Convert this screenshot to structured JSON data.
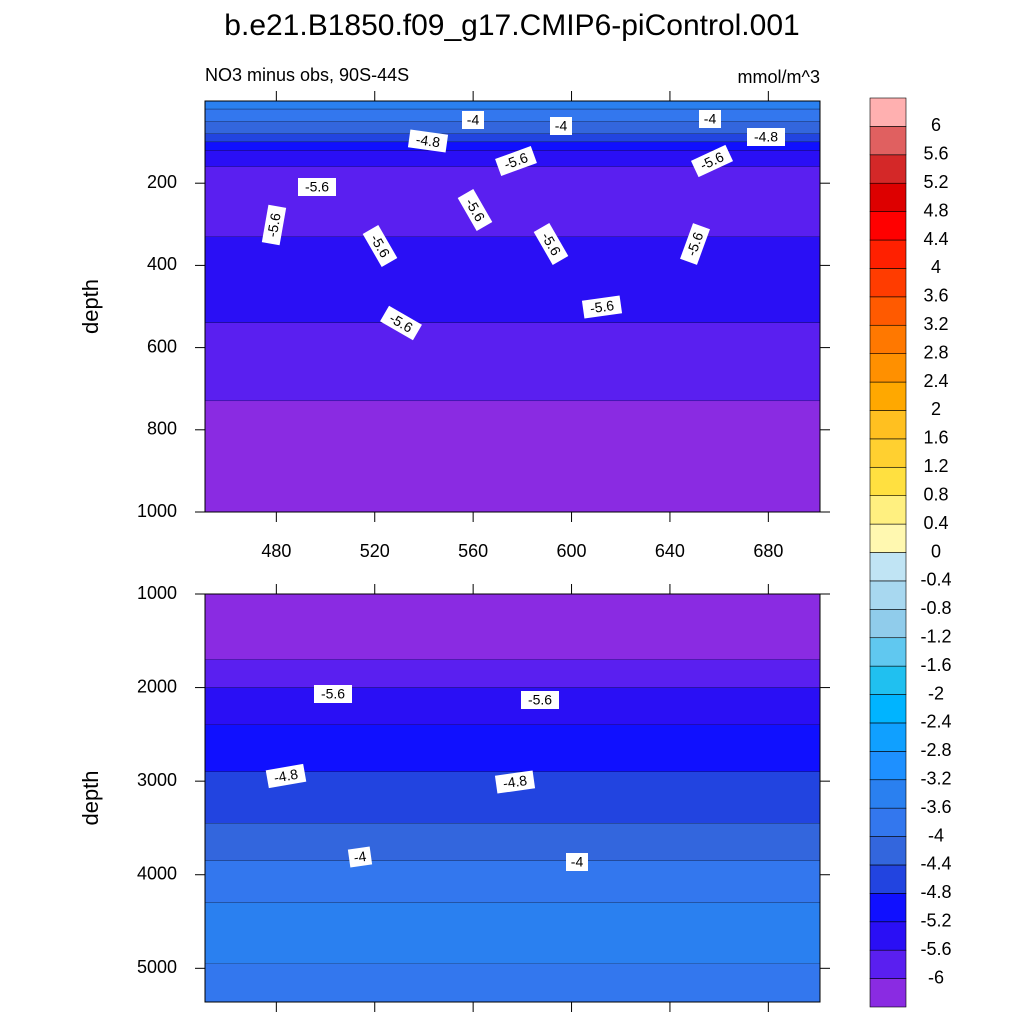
{
  "chart_data": {
    "type": "contour",
    "title": "b.e21.B1850.f09_g17.CMIP6-piControl.001",
    "units": "mmol/m^3",
    "colorbar": {
      "levels": [
        -6,
        -5.6,
        -5.2,
        -4.8,
        -4.4,
        -4,
        -3.6,
        -3.2,
        -2.8,
        -2.4,
        -2,
        -1.6,
        -1.2,
        -0.8,
        -0.4,
        0,
        0.4,
        0.8,
        1.2,
        1.6,
        2,
        2.4,
        2.8,
        3.2,
        3.6,
        4,
        4.4,
        4.8,
        5.2,
        5.6,
        6
      ],
      "colors": [
        "#8a2be2",
        "#5a1ff0",
        "#2a0ff5",
        "#1010ff",
        "#2244e0",
        "#3366dd",
        "#3377ee",
        "#2a80f0",
        "#1e90ff",
        "#10a0ff",
        "#00b4ff",
        "#20c0f0",
        "#60c8f0",
        "#90cceb",
        "#a8d8f0",
        "#c0e4f4",
        "#fff8b0",
        "#fff080",
        "#ffe040",
        "#ffd030",
        "#ffc020",
        "#ffa800",
        "#ff9000",
        "#ff7800",
        "#ff5a00",
        "#ff3c00",
        "#ff2000",
        "#ff0000",
        "#dd0000",
        "#d42828",
        "#e06060",
        "#ffb0b0"
      ]
    },
    "panels": [
      {
        "subtitle": "NO3 minus obs, 90S-44S",
        "ylabel": "depth",
        "xlim": [
          451,
          701
        ],
        "xticks": [
          480,
          520,
          560,
          600,
          640,
          680
        ],
        "ylim": [
          0,
          1000
        ],
        "yticks": [
          200,
          400,
          600,
          800,
          1000
        ],
        "bands": [
          {
            "top": 0,
            "bottom": 20,
            "upper": -3.2
          },
          {
            "top": 20,
            "bottom": 50,
            "upper": -3.6
          },
          {
            "top": 50,
            "bottom": 80,
            "upper": -4
          },
          {
            "top": 80,
            "bottom": 100,
            "upper": -4.4
          },
          {
            "top": 100,
            "bottom": 120,
            "upper": -4.8
          },
          {
            "top": 120,
            "bottom": 160,
            "upper": -5.2
          },
          {
            "top": 160,
            "bottom": 330,
            "upper": -5.6
          },
          {
            "top": 330,
            "bottom": 540,
            "upper": -5.2
          },
          {
            "top": 540,
            "bottom": 730,
            "upper": -5.6
          },
          {
            "top": 730,
            "bottom": 1000,
            "upper": -6
          }
        ],
        "contour_labels": [
          -4,
          -4,
          -4,
          -4.8,
          -4.8,
          -5.6,
          -5.6,
          -5.6,
          -5.6,
          -5.6,
          -5.6,
          -5.6,
          -5.6,
          -5.6,
          -5.6
        ]
      },
      {
        "ylabel": "depth",
        "xlim": [
          451,
          701
        ],
        "xticks": [
          480,
          520,
          560,
          600,
          640,
          680
        ],
        "ylim": [
          1000,
          5360
        ],
        "yticks": [
          1000,
          2000,
          3000,
          4000,
          5000
        ],
        "bands": [
          {
            "top": 1000,
            "bottom": 1700,
            "upper": -6
          },
          {
            "top": 1700,
            "bottom": 2000,
            "upper": -5.6
          },
          {
            "top": 2000,
            "bottom": 2400,
            "upper": -5.2
          },
          {
            "top": 2400,
            "bottom": 2900,
            "upper": -4.8
          },
          {
            "top": 2900,
            "bottom": 3450,
            "upper": -4.4
          },
          {
            "top": 3450,
            "bottom": 3850,
            "upper": -4
          },
          {
            "top": 3850,
            "bottom": 4300,
            "upper": -3.6
          },
          {
            "top": 4300,
            "bottom": 4950,
            "upper": -3.2
          },
          {
            "top": 4950,
            "bottom": 5360,
            "upper": -3.6
          }
        ],
        "contour_labels": [
          -5.6,
          -5.6,
          -4.8,
          -4.8,
          -4,
          -4
        ]
      }
    ]
  }
}
